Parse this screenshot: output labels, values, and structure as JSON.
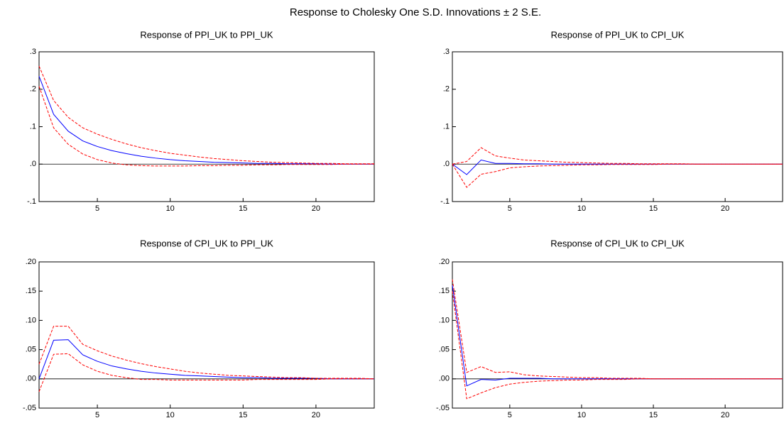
{
  "title": "Response to Cholesky One S.D. Innovations ± 2 S.E.",
  "chart_data": [
    {
      "type": "line",
      "title": "Response of PPI_UK to PPI_UK",
      "x": [
        1,
        2,
        3,
        4,
        5,
        6,
        7,
        8,
        9,
        10,
        11,
        12,
        13,
        14,
        15,
        16,
        17,
        18,
        19,
        20,
        21,
        22,
        23,
        24
      ],
      "xlim": [
        1,
        24
      ],
      "xticks": [
        5,
        10,
        15,
        20
      ],
      "ylim": [
        -0.1,
        0.3
      ],
      "yticks": [
        {
          "value": -0.1,
          "label": "-.1"
        },
        {
          "value": 0,
          "label": ".0"
        },
        {
          "value": 0.1,
          "label": ".1"
        },
        {
          "value": 0.2,
          "label": ".2"
        },
        {
          "value": 0.3,
          "label": ".3"
        }
      ],
      "series": [
        {
          "color": "#0000ff",
          "dash": false,
          "values": [
            0.235,
            0.133,
            0.088,
            0.062,
            0.047,
            0.036,
            0.028,
            0.021,
            0.016,
            0.012,
            0.009,
            0.007,
            0.005,
            0.004,
            0.003,
            0.002,
            0.002,
            0.001,
            0.001,
            0.001,
            0,
            0,
            0,
            0
          ]
        },
        {
          "color": "#ff0000",
          "dash": true,
          "values": [
            0.262,
            0.17,
            0.125,
            0.097,
            0.08,
            0.066,
            0.054,
            0.044,
            0.036,
            0.029,
            0.024,
            0.019,
            0.015,
            0.012,
            0.009,
            0.007,
            0.005,
            0.004,
            0.003,
            0.002,
            0.002,
            0.001,
            0.001,
            0.001
          ]
        },
        {
          "color": "#ff0000",
          "dash": true,
          "values": [
            0.208,
            0.097,
            0.053,
            0.027,
            0.012,
            0.003,
            -0.002,
            -0.004,
            -0.005,
            -0.005,
            -0.005,
            -0.004,
            -0.004,
            -0.003,
            -0.003,
            -0.002,
            -0.002,
            -0.001,
            -0.001,
            -0.001,
            -0.001,
            0,
            0,
            0
          ]
        }
      ]
    },
    {
      "type": "line",
      "title": "Response of PPI_UK to CPI_UK",
      "x": [
        1,
        2,
        3,
        4,
        5,
        6,
        7,
        8,
        9,
        10,
        11,
        12,
        13,
        14,
        15,
        16,
        17,
        18,
        19,
        20,
        21,
        22,
        23,
        24
      ],
      "xlim": [
        1,
        24
      ],
      "xticks": [
        5,
        10,
        15,
        20
      ],
      "ylim": [
        -0.1,
        0.3
      ],
      "yticks": [
        {
          "value": -0.1,
          "label": "-.1"
        },
        {
          "value": 0,
          "label": ".0"
        },
        {
          "value": 0.1,
          "label": ".1"
        },
        {
          "value": 0.2,
          "label": ".2"
        },
        {
          "value": 0.3,
          "label": ".3"
        }
      ],
      "series": [
        {
          "color": "#0000ff",
          "dash": false,
          "values": [
            0,
            -0.028,
            0.011,
            0.002,
            0.002,
            0.001,
            0.001,
            0,
            0,
            0,
            0,
            0,
            0,
            0,
            0,
            0,
            0,
            0,
            0,
            0,
            0,
            0,
            0,
            0
          ]
        },
        {
          "color": "#ff0000",
          "dash": true,
          "values": [
            0,
            0.007,
            0.044,
            0.022,
            0.016,
            0.011,
            0.009,
            0.007,
            0.005,
            0.004,
            0.003,
            0.002,
            0.002,
            0.001,
            0.001,
            0.001,
            0.001,
            0,
            0,
            0,
            0,
            0,
            0,
            0
          ]
        },
        {
          "color": "#ff0000",
          "dash": true,
          "values": [
            0,
            -0.062,
            -0.027,
            -0.02,
            -0.01,
            -0.007,
            -0.005,
            -0.004,
            -0.003,
            -0.002,
            -0.002,
            -0.001,
            -0.001,
            -0.001,
            -0.001,
            0,
            0,
            0,
            0,
            0,
            0,
            0,
            0,
            0
          ]
        }
      ]
    },
    {
      "type": "line",
      "title": "Response of CPI_UK to PPI_UK",
      "x": [
        1,
        2,
        3,
        4,
        5,
        6,
        7,
        8,
        9,
        10,
        11,
        12,
        13,
        14,
        15,
        16,
        17,
        18,
        19,
        20,
        21,
        22,
        23,
        24
      ],
      "xlim": [
        1,
        24
      ],
      "xticks": [
        5,
        10,
        15,
        20
      ],
      "ylim": [
        -0.05,
        0.2
      ],
      "yticks": [
        {
          "value": -0.05,
          "label": "-.05"
        },
        {
          "value": 0,
          "label": ".00"
        },
        {
          "value": 0.05,
          "label": ".05"
        },
        {
          "value": 0.1,
          "label": ".10"
        },
        {
          "value": 0.15,
          "label": ".15"
        },
        {
          "value": 0.2,
          "label": ".20"
        }
      ],
      "series": [
        {
          "color": "#0000ff",
          "dash": false,
          "values": [
            0,
            0.066,
            0.067,
            0.041,
            0.03,
            0.022,
            0.017,
            0.013,
            0.01,
            0.008,
            0.006,
            0.005,
            0.004,
            0.003,
            0.002,
            0.002,
            0.001,
            0.001,
            0.001,
            0.001,
            0,
            0,
            0,
            0
          ]
        },
        {
          "color": "#ff0000",
          "dash": true,
          "values": [
            0.025,
            0.09,
            0.09,
            0.059,
            0.048,
            0.039,
            0.032,
            0.026,
            0.021,
            0.017,
            0.013,
            0.01,
            0.008,
            0.006,
            0.005,
            0.004,
            0.003,
            0.002,
            0.002,
            0.001,
            0.001,
            0.001,
            0.001,
            0
          ]
        },
        {
          "color": "#ff0000",
          "dash": true,
          "values": [
            -0.022,
            0.042,
            0.043,
            0.024,
            0.013,
            0.006,
            0.002,
            -0.001,
            -0.001,
            -0.002,
            -0.002,
            -0.002,
            -0.002,
            -0.002,
            -0.002,
            -0.001,
            -0.001,
            -0.001,
            -0.001,
            -0.001,
            0,
            0,
            0,
            0
          ]
        }
      ]
    },
    {
      "type": "line",
      "title": "Response of CPI_UK to CPI_UK",
      "x": [
        1,
        2,
        3,
        4,
        5,
        6,
        7,
        8,
        9,
        10,
        11,
        12,
        13,
        14,
        15,
        16,
        17,
        18,
        19,
        20,
        21,
        22,
        23,
        24
      ],
      "xlim": [
        1,
        24
      ],
      "xticks": [
        5,
        10,
        15,
        20
      ],
      "ylim": [
        -0.05,
        0.2
      ],
      "yticks": [
        {
          "value": -0.05,
          "label": "-.05"
        },
        {
          "value": 0,
          "label": ".00"
        },
        {
          "value": 0.05,
          "label": ".05"
        },
        {
          "value": 0.1,
          "label": ".10"
        },
        {
          "value": 0.15,
          "label": ".15"
        },
        {
          "value": 0.2,
          "label": ".20"
        }
      ],
      "series": [
        {
          "color": "#0000ff",
          "dash": false,
          "values": [
            0.16,
            -0.012,
            -0.001,
            -0.002,
            0.001,
            0.001,
            0.001,
            0,
            0,
            0,
            0,
            0,
            0,
            0,
            0,
            0,
            0,
            0,
            0,
            0,
            0,
            0,
            0,
            0
          ]
        },
        {
          "color": "#ff0000",
          "dash": true,
          "values": [
            0.17,
            0.011,
            0.021,
            0.011,
            0.012,
            0.007,
            0.005,
            0.004,
            0.003,
            0.002,
            0.002,
            0.001,
            0.001,
            0.001,
            0,
            0,
            0,
            0,
            0,
            0,
            0,
            0,
            0,
            0
          ]
        },
        {
          "color": "#ff0000",
          "dash": true,
          "values": [
            0.15,
            -0.034,
            -0.024,
            -0.015,
            -0.009,
            -0.006,
            -0.004,
            -0.003,
            -0.002,
            -0.002,
            -0.001,
            -0.001,
            -0.001,
            0,
            0,
            0,
            0,
            0,
            0,
            0,
            0,
            0,
            0,
            0
          ]
        }
      ]
    }
  ]
}
